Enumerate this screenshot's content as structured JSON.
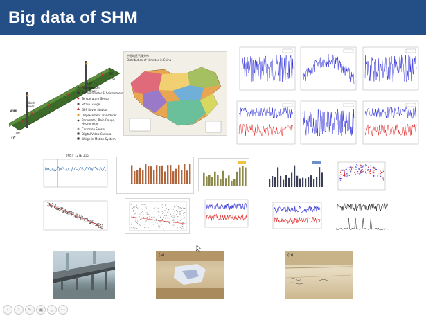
{
  "slide": {
    "title": "Big data of SHM",
    "header_color": "#234e86"
  },
  "bridge_diagram": {
    "labels": [
      "WIM",
      "West",
      "tower",
      "ZW",
      "4W",
      "CW",
      "East",
      "Tower",
      "ST",
      "SE"
    ],
    "legend": [
      "Anemometer",
      "Accelerometer & Seismometer",
      "Temperature Sensor",
      "Strain Gauge",
      "GPS Rover Station",
      "Displacement Transducer",
      "Barometer, Rain Gauge, Hygrometer",
      "Corrosion Sensor",
      "Digital Video Camera",
      "Weigh-in-Motion System"
    ],
    "legend_wim": "WIM"
  },
  "china_map": {
    "heading_cn": "中国地区气候分布",
    "subheading": "Distribution of climates in China"
  },
  "line_plot": {
    "title": "TM54_127E_215"
  },
  "toolbar": {
    "icons": [
      "back-icon",
      "forward-icon",
      "pen-icon",
      "copy-icon",
      "search-icon",
      "more-icon"
    ]
  },
  "photos": {
    "b_label": "(b)",
    "a_label": "(a)"
  },
  "colors": {
    "blue_series": "#2a2ad6",
    "red_series": "#e02020",
    "bar_brown": "#b0643a",
    "bar_olive": "#8c8a4a"
  }
}
